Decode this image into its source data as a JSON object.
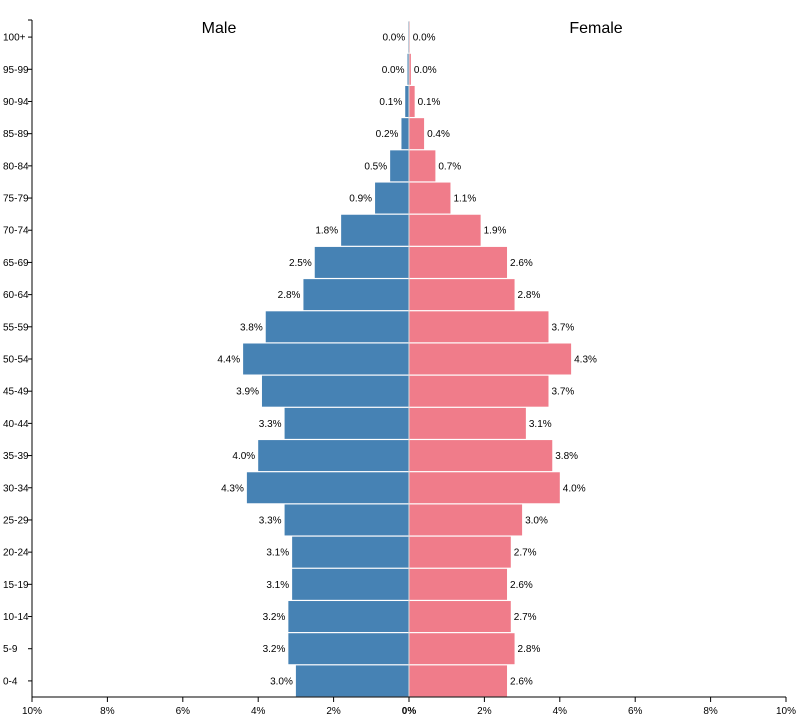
{
  "chart_data": {
    "type": "bar",
    "orientation": "horizontal-pyramid",
    "categories": [
      "100+",
      "95-99",
      "90-94",
      "85-89",
      "80-84",
      "75-79",
      "70-74",
      "65-69",
      "60-64",
      "55-59",
      "50-54",
      "45-49",
      "40-44",
      "35-39",
      "30-34",
      "25-29",
      "20-24",
      "15-19",
      "10-14",
      "5-9",
      "0-4"
    ],
    "series": [
      {
        "name": "Male",
        "color": "#4682b4",
        "values": [
          0.02,
          0.04,
          0.1,
          0.2,
          0.5,
          0.9,
          1.8,
          2.5,
          2.8,
          3.8,
          4.4,
          3.9,
          3.3,
          4.0,
          4.3,
          3.3,
          3.1,
          3.1,
          3.2,
          3.2,
          3.0
        ],
        "labels": [
          "0.0%",
          "0.0%",
          "0.1%",
          "0.2%",
          "0.5%",
          "0.9%",
          "1.8%",
          "2.5%",
          "2.8%",
          "3.8%",
          "4.4%",
          "3.9%",
          "3.3%",
          "4.0%",
          "4.3%",
          "3.3%",
          "3.1%",
          "3.1%",
          "3.2%",
          "3.2%",
          "3.0%"
        ]
      },
      {
        "name": "Female",
        "color": "#f07c8a",
        "values": [
          0.02,
          0.05,
          0.15,
          0.4,
          0.7,
          1.1,
          1.9,
          2.6,
          2.8,
          3.7,
          4.3,
          3.7,
          3.1,
          3.8,
          4.0,
          3.0,
          2.7,
          2.6,
          2.7,
          2.8,
          2.6
        ],
        "labels": [
          "0.0%",
          "0.0%",
          "0.1%",
          "0.4%",
          "0.7%",
          "1.1%",
          "1.9%",
          "2.6%",
          "2.8%",
          "3.7%",
          "4.3%",
          "3.7%",
          "3.1%",
          "3.8%",
          "4.0%",
          "3.0%",
          "2.7%",
          "2.6%",
          "2.7%",
          "2.8%",
          "2.6%"
        ]
      }
    ],
    "xlim": [
      -10,
      10
    ],
    "xticks": [
      "10%",
      "8%",
      "6%",
      "4%",
      "2%",
      "0%",
      "2%",
      "4%",
      "6%",
      "8%",
      "10%"
    ],
    "grid": false,
    "legend": "top"
  }
}
